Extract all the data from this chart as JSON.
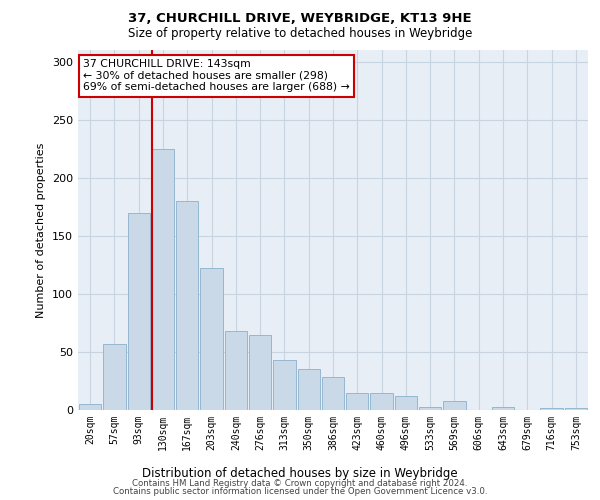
{
  "title1": "37, CHURCHILL DRIVE, WEYBRIDGE, KT13 9HE",
  "title2": "Size of property relative to detached houses in Weybridge",
  "xlabel": "Distribution of detached houses by size in Weybridge",
  "ylabel": "Number of detached properties",
  "bar_labels": [
    "20sqm",
    "57sqm",
    "93sqm",
    "130sqm",
    "167sqm",
    "203sqm",
    "240sqm",
    "276sqm",
    "313sqm",
    "350sqm",
    "386sqm",
    "423sqm",
    "460sqm",
    "496sqm",
    "533sqm",
    "569sqm",
    "606sqm",
    "643sqm",
    "679sqm",
    "716sqm",
    "753sqm"
  ],
  "bar_values": [
    5,
    57,
    170,
    225,
    180,
    122,
    68,
    65,
    43,
    35,
    28,
    15,
    15,
    12,
    3,
    8,
    0,
    3,
    0,
    2,
    2
  ],
  "bar_color": "#c9d9e8",
  "bar_edge_color": "#8ab0cc",
  "vline_x_index": 3,
  "vline_color": "#cc0000",
  "annotation_text": "37 CHURCHILL DRIVE: 143sqm\n← 30% of detached houses are smaller (298)\n69% of semi-detached houses are larger (688) →",
  "annotation_box_color": "#ffffff",
  "annotation_box_edge": "#cc0000",
  "ylim": [
    0,
    310
  ],
  "yticks": [
    0,
    50,
    100,
    150,
    200,
    250,
    300
  ],
  "grid_color": "#c8d4e0",
  "bg_color": "#e8eef5",
  "footer1": "Contains HM Land Registry data © Crown copyright and database right 2024.",
  "footer2": "Contains public sector information licensed under the Open Government Licence v3.0."
}
